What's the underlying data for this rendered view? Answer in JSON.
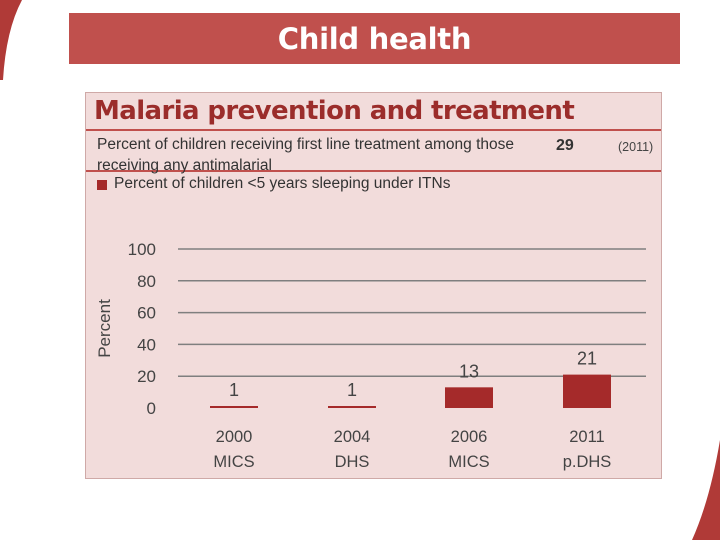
{
  "slide": {
    "title": "Child health"
  },
  "panel": {
    "heading": "Malaria prevention and treatment",
    "indicator": {
      "label": "Percent of children receiving first line treatment among those receiving any antimalarial",
      "value": "29",
      "year": "(2011)"
    },
    "legend": {
      "label": "Percent of children <5 years sleeping under ITNs"
    }
  },
  "colors": {
    "accent": "#c0504d",
    "bar": "#a52a2a",
    "panel_bg": "#f2dcdb"
  },
  "chart_data": {
    "type": "bar",
    "title": "Percent of children <5 years sleeping under ITNs",
    "ylabel": "Percent",
    "xlabel": "",
    "ylim": [
      0,
      100
    ],
    "yticks": [
      0,
      20,
      40,
      60,
      80,
      100
    ],
    "grid": true,
    "categories": [
      [
        "2000",
        "MICS"
      ],
      [
        "2004",
        "DHS"
      ],
      [
        "2006",
        "MICS"
      ],
      [
        "2011",
        "p.DHS"
      ]
    ],
    "values": [
      1,
      1,
      13,
      21
    ],
    "data_labels": [
      "1",
      "1",
      "13",
      "21"
    ]
  }
}
